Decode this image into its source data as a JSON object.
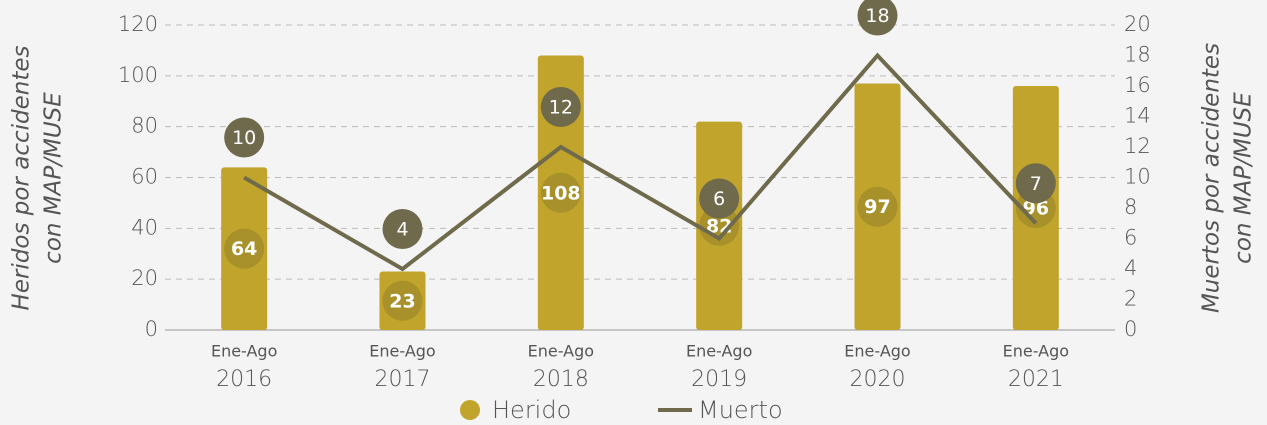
{
  "chart_data": {
    "type": "bar",
    "categories": [
      [
        "Ene-Ago",
        "2016"
      ],
      [
        "Ene-Ago",
        "2017"
      ],
      [
        "Ene-Ago",
        "2018"
      ],
      [
        "Ene-Ago",
        "2019"
      ],
      [
        "Ene-Ago",
        "2020"
      ],
      [
        "Ene-Ago",
        "2021"
      ]
    ],
    "series": [
      {
        "name": "Herido",
        "type": "bar",
        "color": "#c1a42b",
        "label_color": "#a8902a",
        "values": [
          64,
          23,
          108,
          82,
          97,
          96
        ]
      },
      {
        "name": "Muerto",
        "type": "line",
        "axis": "y2",
        "color": "#6f6a4c",
        "values": [
          10,
          4,
          12,
          6,
          18,
          7
        ]
      }
    ],
    "y_label": [
      "Heridos por accidentes",
      "con MAP/MUSE"
    ],
    "y2_label": [
      "Muertos por accidentes",
      "con MAP/MUSE"
    ],
    "ylim": [
      0,
      120
    ],
    "yticks": [
      0,
      20,
      40,
      60,
      80,
      100,
      120
    ],
    "y2lim": [
      0,
      20
    ],
    "y2ticks": [
      0,
      2,
      4,
      6,
      8,
      10,
      12,
      14,
      16,
      18,
      20
    ],
    "grid": true,
    "legend": "bottom"
  }
}
